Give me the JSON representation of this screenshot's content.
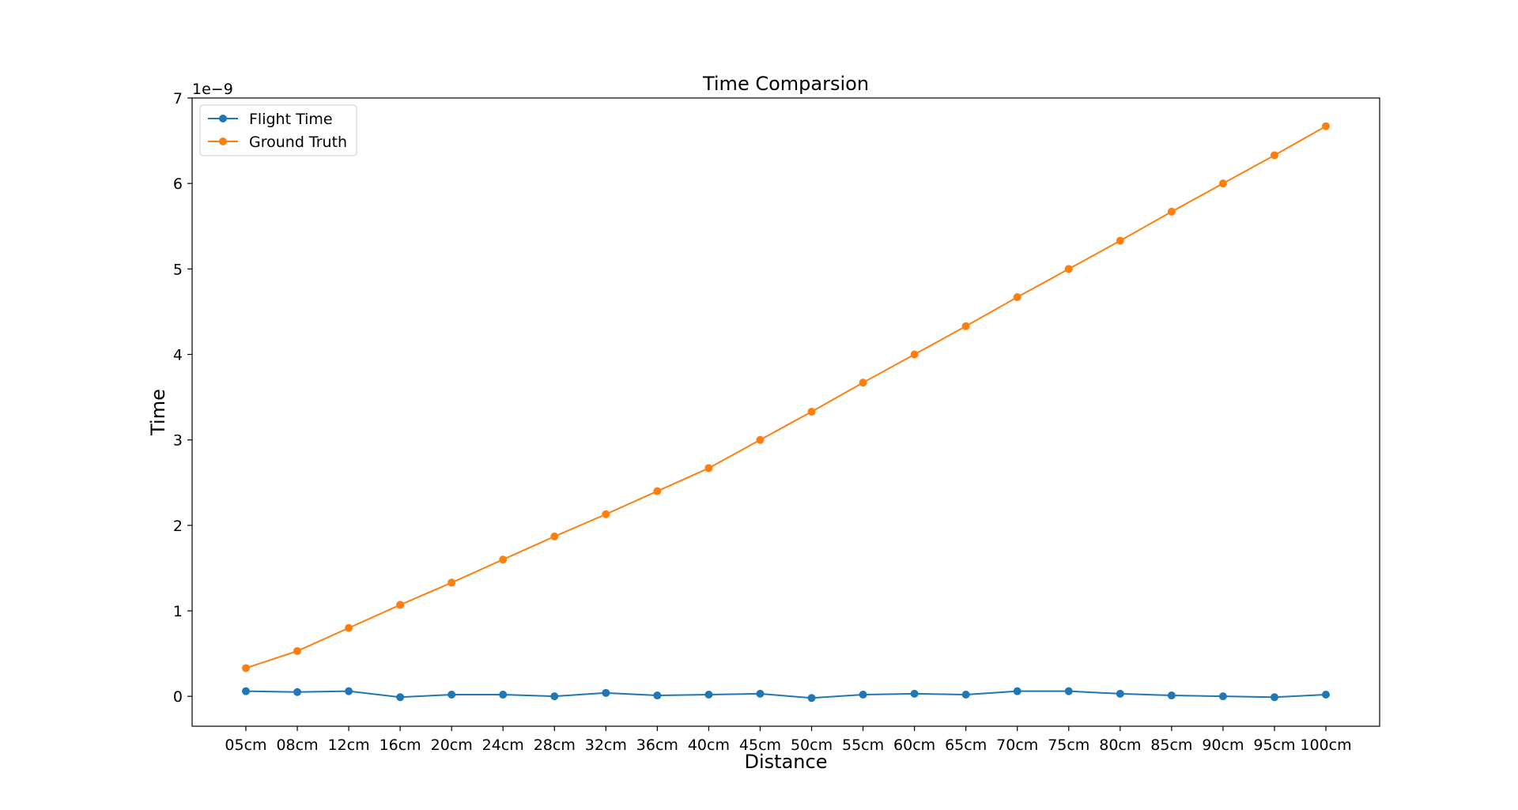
{
  "chart_data": {
    "type": "line",
    "title": "Time Comparsion",
    "xlabel": "Distance",
    "ylabel": "Time",
    "y_offset_label": "1e−9",
    "categories": [
      "05cm",
      "08cm",
      "12cm",
      "16cm",
      "20cm",
      "24cm",
      "28cm",
      "32cm",
      "36cm",
      "40cm",
      "45cm",
      "50cm",
      "55cm",
      "60cm",
      "65cm",
      "70cm",
      "75cm",
      "80cm",
      "85cm",
      "90cm",
      "95cm",
      "100cm"
    ],
    "y_ticks": [
      0,
      1,
      2,
      3,
      4,
      5,
      6,
      7
    ],
    "ylim": [
      -0.35,
      7.0
    ],
    "grid": false,
    "legend_position": "upper-left",
    "series": [
      {
        "name": "Flight Time",
        "color": "#1f77b4",
        "marker": "circle",
        "values": [
          0.06,
          0.05,
          0.06,
          -0.01,
          0.02,
          0.02,
          0.0,
          0.04,
          0.01,
          0.02,
          0.03,
          -0.02,
          0.02,
          0.03,
          0.02,
          0.06,
          0.06,
          0.03,
          0.01,
          0.0,
          -0.01,
          0.02
        ]
      },
      {
        "name": "Ground Truth",
        "color": "#ff7f0e",
        "marker": "circle",
        "values": [
          0.33,
          0.53,
          0.8,
          1.07,
          1.33,
          1.6,
          1.87,
          2.13,
          2.4,
          2.67,
          3.0,
          3.33,
          3.67,
          4.0,
          4.33,
          4.67,
          5.0,
          5.33,
          5.67,
          6.0,
          6.33,
          6.67
        ]
      }
    ]
  }
}
